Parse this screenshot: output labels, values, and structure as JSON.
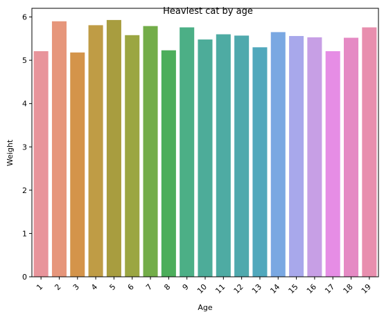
{
  "chart_data": {
    "type": "bar",
    "title": "Heaviest cat by age",
    "xlabel": "Age",
    "ylabel": "Weight",
    "categories": [
      "1",
      "2",
      "3",
      "4",
      "5",
      "6",
      "7",
      "8",
      "9",
      "10",
      "11",
      "12",
      "13",
      "14",
      "15",
      "16",
      "17",
      "18",
      "19"
    ],
    "values": [
      5.21,
      5.9,
      5.18,
      5.81,
      5.93,
      5.58,
      5.79,
      5.23,
      5.76,
      5.48,
      5.6,
      5.57,
      5.3,
      5.65,
      5.56,
      5.53,
      5.21,
      5.52,
      5.76
    ],
    "colors": [
      "#e8949b",
      "#e6967b",
      "#d4944a",
      "#bf9c45",
      "#a89d3f",
      "#9ba642",
      "#73ad49",
      "#4cae5b",
      "#4caf86",
      "#4dac99",
      "#4eaba3",
      "#4fa9ad",
      "#51a8bc",
      "#7aa8e2",
      "#a8a8eb",
      "#c79fe5",
      "#e68de5",
      "#e58ac4",
      "#e88fae"
    ],
    "yticks": [
      0,
      1,
      2,
      3,
      4,
      5,
      6
    ],
    "ylim": [
      0,
      6.2
    ],
    "grid": false,
    "legend": false
  }
}
